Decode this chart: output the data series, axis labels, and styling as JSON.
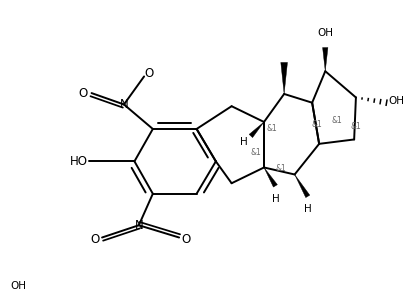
{
  "bg_color": "#ffffff",
  "line_color": "#000000",
  "lw": 1.4,
  "fs": 7.5,
  "figsize": [
    4.05,
    2.91
  ],
  "dpi": 100,
  "xlim": [
    0,
    10.5
  ],
  "ylim": [
    0,
    7.5
  ]
}
